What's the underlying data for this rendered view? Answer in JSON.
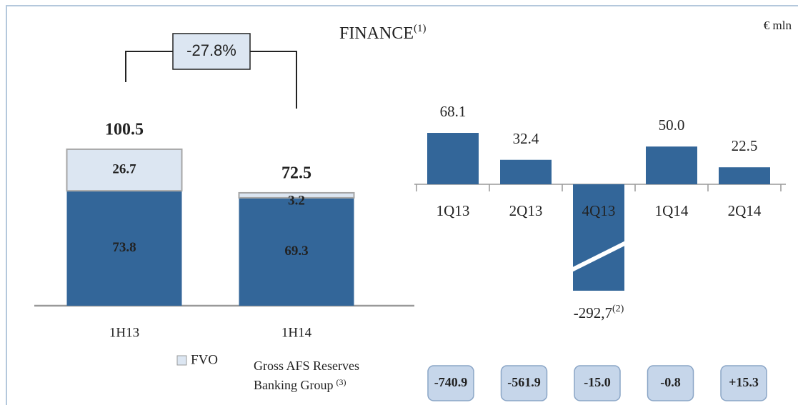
{
  "title": "FINANCE",
  "title_note": "(1)",
  "unit": "€ mln",
  "chart_data": [
    {
      "type": "stacked_bar",
      "categories": [
        "1H13",
        "1H14"
      ],
      "series": [
        {
          "color": "#336699",
          "values": [
            73.8,
            69.3
          ]
        },
        {
          "name": "FVO",
          "color": "#dce6f2",
          "values": [
            26.7,
            3.2
          ]
        }
      ],
      "totals": [
        100.5,
        72.5
      ],
      "change": {
        "value": -27.8,
        "label": "-27.8%"
      }
    },
    {
      "type": "bar",
      "categories": [
        "1Q13",
        "2Q13",
        "4Q13",
        "1Q14",
        "2Q14"
      ],
      "values": [
        68.1,
        32.4,
        -292.7,
        50.0,
        22.5
      ],
      "value_labels": [
        "68.1",
        "32.4",
        "-292,7",
        "50.0",
        "22.5"
      ],
      "value_label_notes": [
        null,
        null,
        "(2)",
        null,
        null
      ],
      "color": "#336699"
    }
  ],
  "afs": {
    "label": [
      "Gross AFS Reserves",
      "Banking Group"
    ],
    "note": "(3)",
    "values": [
      -740.9,
      -561.9,
      -15.0,
      -0.8,
      15.3
    ],
    "value_labels": [
      "-740.9",
      "-561.9",
      "-15.0",
      "-0.8",
      "+15.3"
    ]
  }
}
